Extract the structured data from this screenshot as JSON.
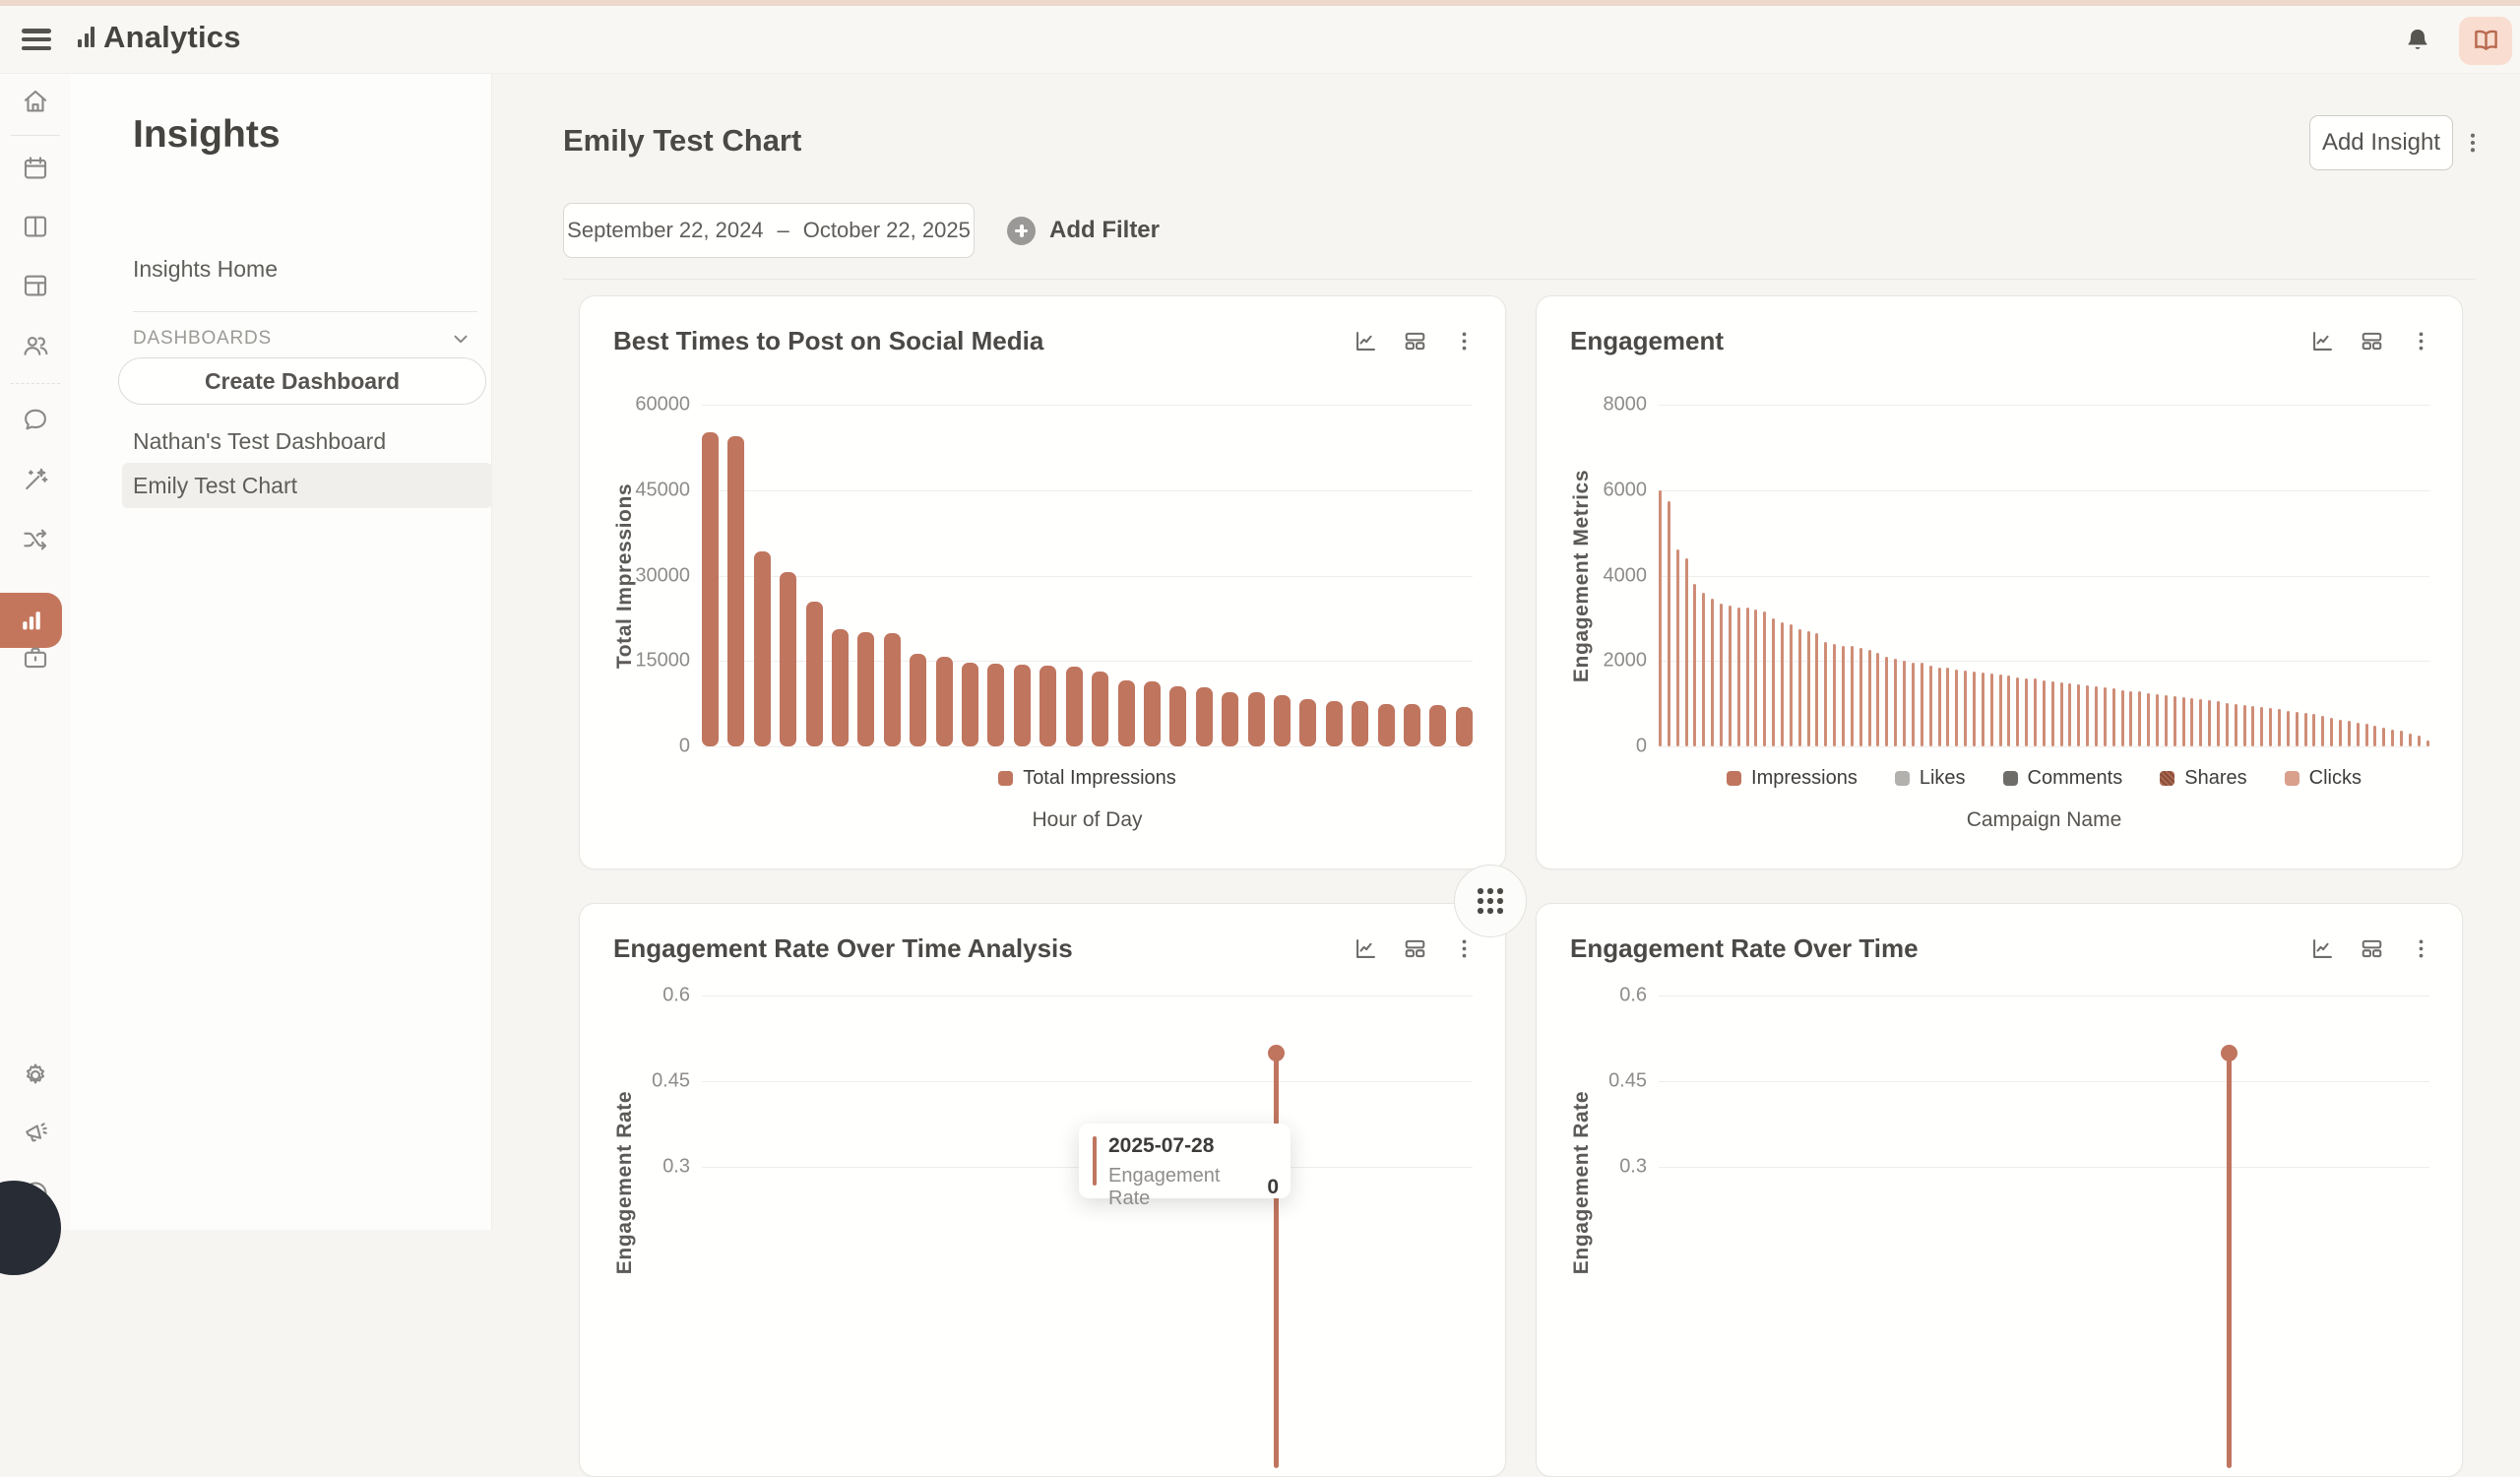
{
  "topbar": {
    "app_title": "Analytics"
  },
  "rail": {
    "items": [
      {
        "icon": "home-icon"
      },
      {
        "icon": "divider"
      },
      {
        "icon": "calendar-icon"
      },
      {
        "icon": "columns-icon"
      },
      {
        "icon": "layout-icon"
      },
      {
        "icon": "users-icon"
      },
      {
        "icon": "divider-dashed"
      },
      {
        "icon": "chat-icon"
      },
      {
        "icon": "magic-wand-icon"
      },
      {
        "icon": "shuffle-icon"
      },
      {
        "icon": "bar-chart-icon",
        "active": true
      },
      {
        "icon": "briefcase-icon"
      },
      {
        "icon": "gear-icon"
      },
      {
        "icon": "megaphone-icon"
      },
      {
        "icon": "help-icon"
      }
    ],
    "active_color": "#c4765c"
  },
  "sidebar": {
    "title": "Insights",
    "home_label": "Insights Home",
    "section_label": "DASHBOARDS",
    "create_button_label": "Create Dashboard",
    "dashboards": [
      {
        "label": "Nathan's Test Dashboard",
        "selected": false
      },
      {
        "label": "Emily Test Chart",
        "selected": true
      }
    ]
  },
  "page": {
    "title": "Emily Test Chart",
    "add_insight_label": "Add Insight",
    "date_range": {
      "start": "September 22, 2024",
      "separator": "–",
      "end": "October 22, 2025"
    },
    "add_filter_label": "Add Filter"
  },
  "colors": {
    "accent": "#c0755e",
    "accent_light": "#cf8d76",
    "gray_light": "#b3b1ae",
    "gray_dark": "#6f6d6a",
    "shares": "#ae6850",
    "clicks": "#d9a08c"
  },
  "chart_data": [
    {
      "id": "best-times",
      "type": "bar",
      "title": "Best Times to Post on Social Media",
      "ylabel": "Total Impressions",
      "xlabel": "Hour of Day",
      "ylim": [
        0,
        60000
      ],
      "yticks": [
        60000,
        45000,
        30000,
        15000,
        0
      ],
      "legend": [
        {
          "label": "Total Impressions",
          "color": "#c0755e"
        }
      ],
      "bar_color": "#c0755e",
      "values": [
        55100,
        54500,
        34200,
        30600,
        25400,
        20500,
        20100,
        19900,
        16300,
        15700,
        14750,
        14600,
        14300,
        14200,
        14000,
        13200,
        11600,
        11500,
        10550,
        10400,
        9550,
        9450,
        9000,
        8300,
        8000,
        7950,
        7450,
        7400,
        7300,
        7000
      ]
    },
    {
      "id": "engagement",
      "type": "bar",
      "title": "Engagement",
      "ylabel": "Engagement Metrics",
      "xlabel": "Campaign Name",
      "ylim": [
        0,
        8000
      ],
      "yticks": [
        8000,
        6000,
        4000,
        2000,
        0
      ],
      "legend": [
        {
          "label": "Impressions",
          "color": "#c0755e"
        },
        {
          "label": "Likes",
          "color": "#b3b1ae"
        },
        {
          "label": "Comments",
          "color": "#6f6d6a"
        },
        {
          "label": "Shares",
          "color": "#ae6850",
          "pattern": true
        },
        {
          "label": "Clicks",
          "color": "#d9a08c"
        }
      ],
      "bar_color": "#cf8d76",
      "thin": true,
      "values": [
        6000,
        5750,
        4600,
        4400,
        3800,
        3600,
        3450,
        3350,
        3300,
        3250,
        3250,
        3200,
        3150,
        3000,
        2900,
        2850,
        2750,
        2700,
        2650,
        2450,
        2400,
        2350,
        2350,
        2300,
        2250,
        2200,
        2100,
        2050,
        2000,
        1950,
        1950,
        1900,
        1850,
        1850,
        1800,
        1780,
        1750,
        1720,
        1700,
        1680,
        1650,
        1620,
        1600,
        1580,
        1550,
        1520,
        1500,
        1480,
        1450,
        1420,
        1400,
        1380,
        1350,
        1320,
        1300,
        1280,
        1250,
        1220,
        1200,
        1180,
        1150,
        1120,
        1100,
        1080,
        1050,
        1020,
        1000,
        980,
        950,
        920,
        900,
        870,
        840,
        810,
        780,
        750,
        710,
        670,
        630,
        600,
        560,
        520,
        480,
        440,
        400,
        360,
        310,
        260,
        150
      ]
    },
    {
      "id": "engagement-rate-analysis",
      "type": "lollipop",
      "title": "Engagement Rate Over Time Analysis",
      "ylabel": "Engagement Rate",
      "yticks": [
        0.6,
        0.45,
        0.3
      ],
      "ytick_top": 0.6,
      "ytick_step": 0.15,
      "point": {
        "value": 0.5,
        "x_fraction": 0.745
      },
      "tooltip": {
        "date": "2025-07-28",
        "label": "Engagement Rate",
        "value": "0"
      },
      "has_drag_handle": true
    },
    {
      "id": "engagement-rate",
      "type": "lollipop",
      "title": "Engagement Rate Over Time",
      "ylabel": "Engagement Rate",
      "yticks": [
        0.6,
        0.45,
        0.3
      ],
      "ytick_top": 0.6,
      "ytick_step": 0.15,
      "point": {
        "value": 0.5,
        "x_fraction": 0.74
      }
    }
  ]
}
